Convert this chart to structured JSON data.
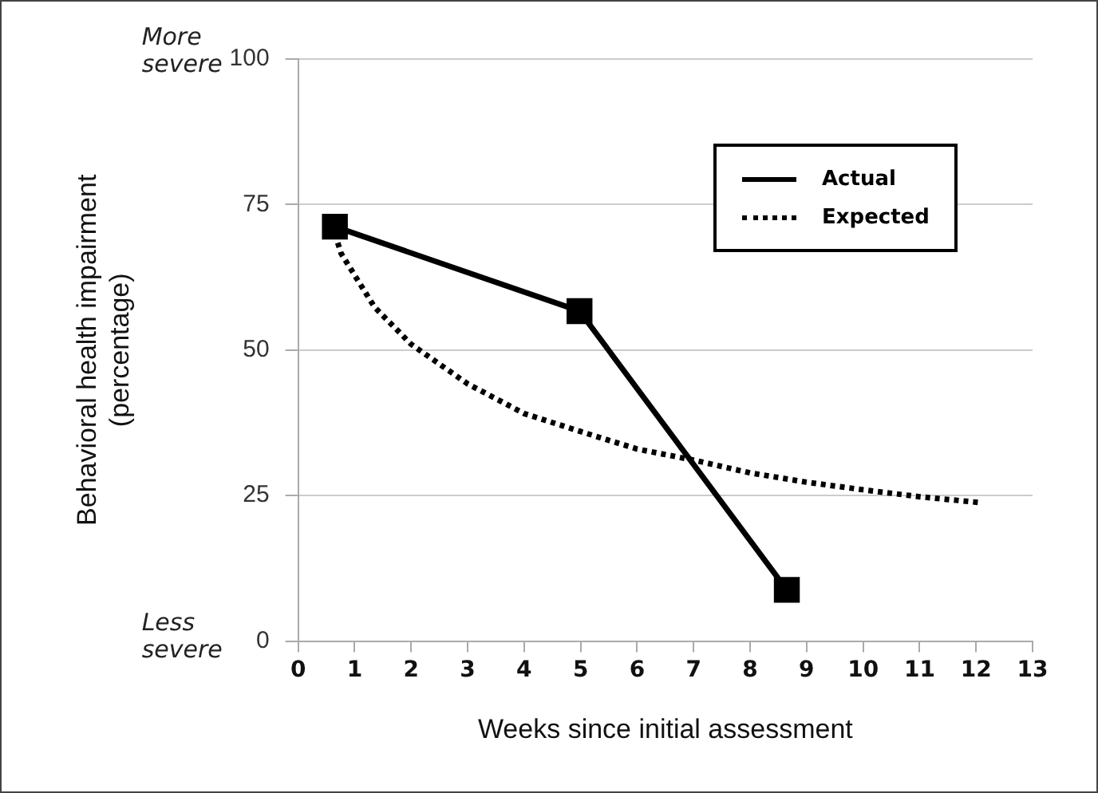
{
  "chart_data": {
    "type": "line",
    "xlabel": "Weeks since initial assessment",
    "ylabel": "Behavioral health impairment\n(percentage)",
    "xlim": [
      0,
      13
    ],
    "xticks": [
      0,
      1,
      2,
      3,
      4,
      5,
      6,
      7,
      8,
      9,
      10,
      11,
      12,
      13
    ],
    "ylim": [
      0,
      100
    ],
    "yticks": [
      0,
      25,
      50,
      75,
      100
    ],
    "grid": "y",
    "legend": "top right",
    "annotations": [
      "More severe",
      "Less severe"
    ],
    "series": [
      {
        "name": "Actual",
        "color": "#000000",
        "marker": "square",
        "line_style": "solid",
        "x": [
          0.65,
          4.98,
          8.65
        ],
        "values": [
          71.2,
          56.7,
          8.8
        ]
      },
      {
        "name": "Expected",
        "color": "#000000",
        "marker": "none",
        "line_style": "dotted",
        "x": [
          0.65,
          0.76,
          1.35,
          2,
          3,
          4,
          5,
          6,
          7,
          8,
          9,
          10,
          11,
          12.07
        ],
        "values": [
          70,
          66.6,
          57.4,
          51,
          44.2,
          39.1,
          36,
          33,
          31.1,
          28.9,
          27.3,
          26,
          24.8,
          23.8
        ]
      }
    ]
  }
}
